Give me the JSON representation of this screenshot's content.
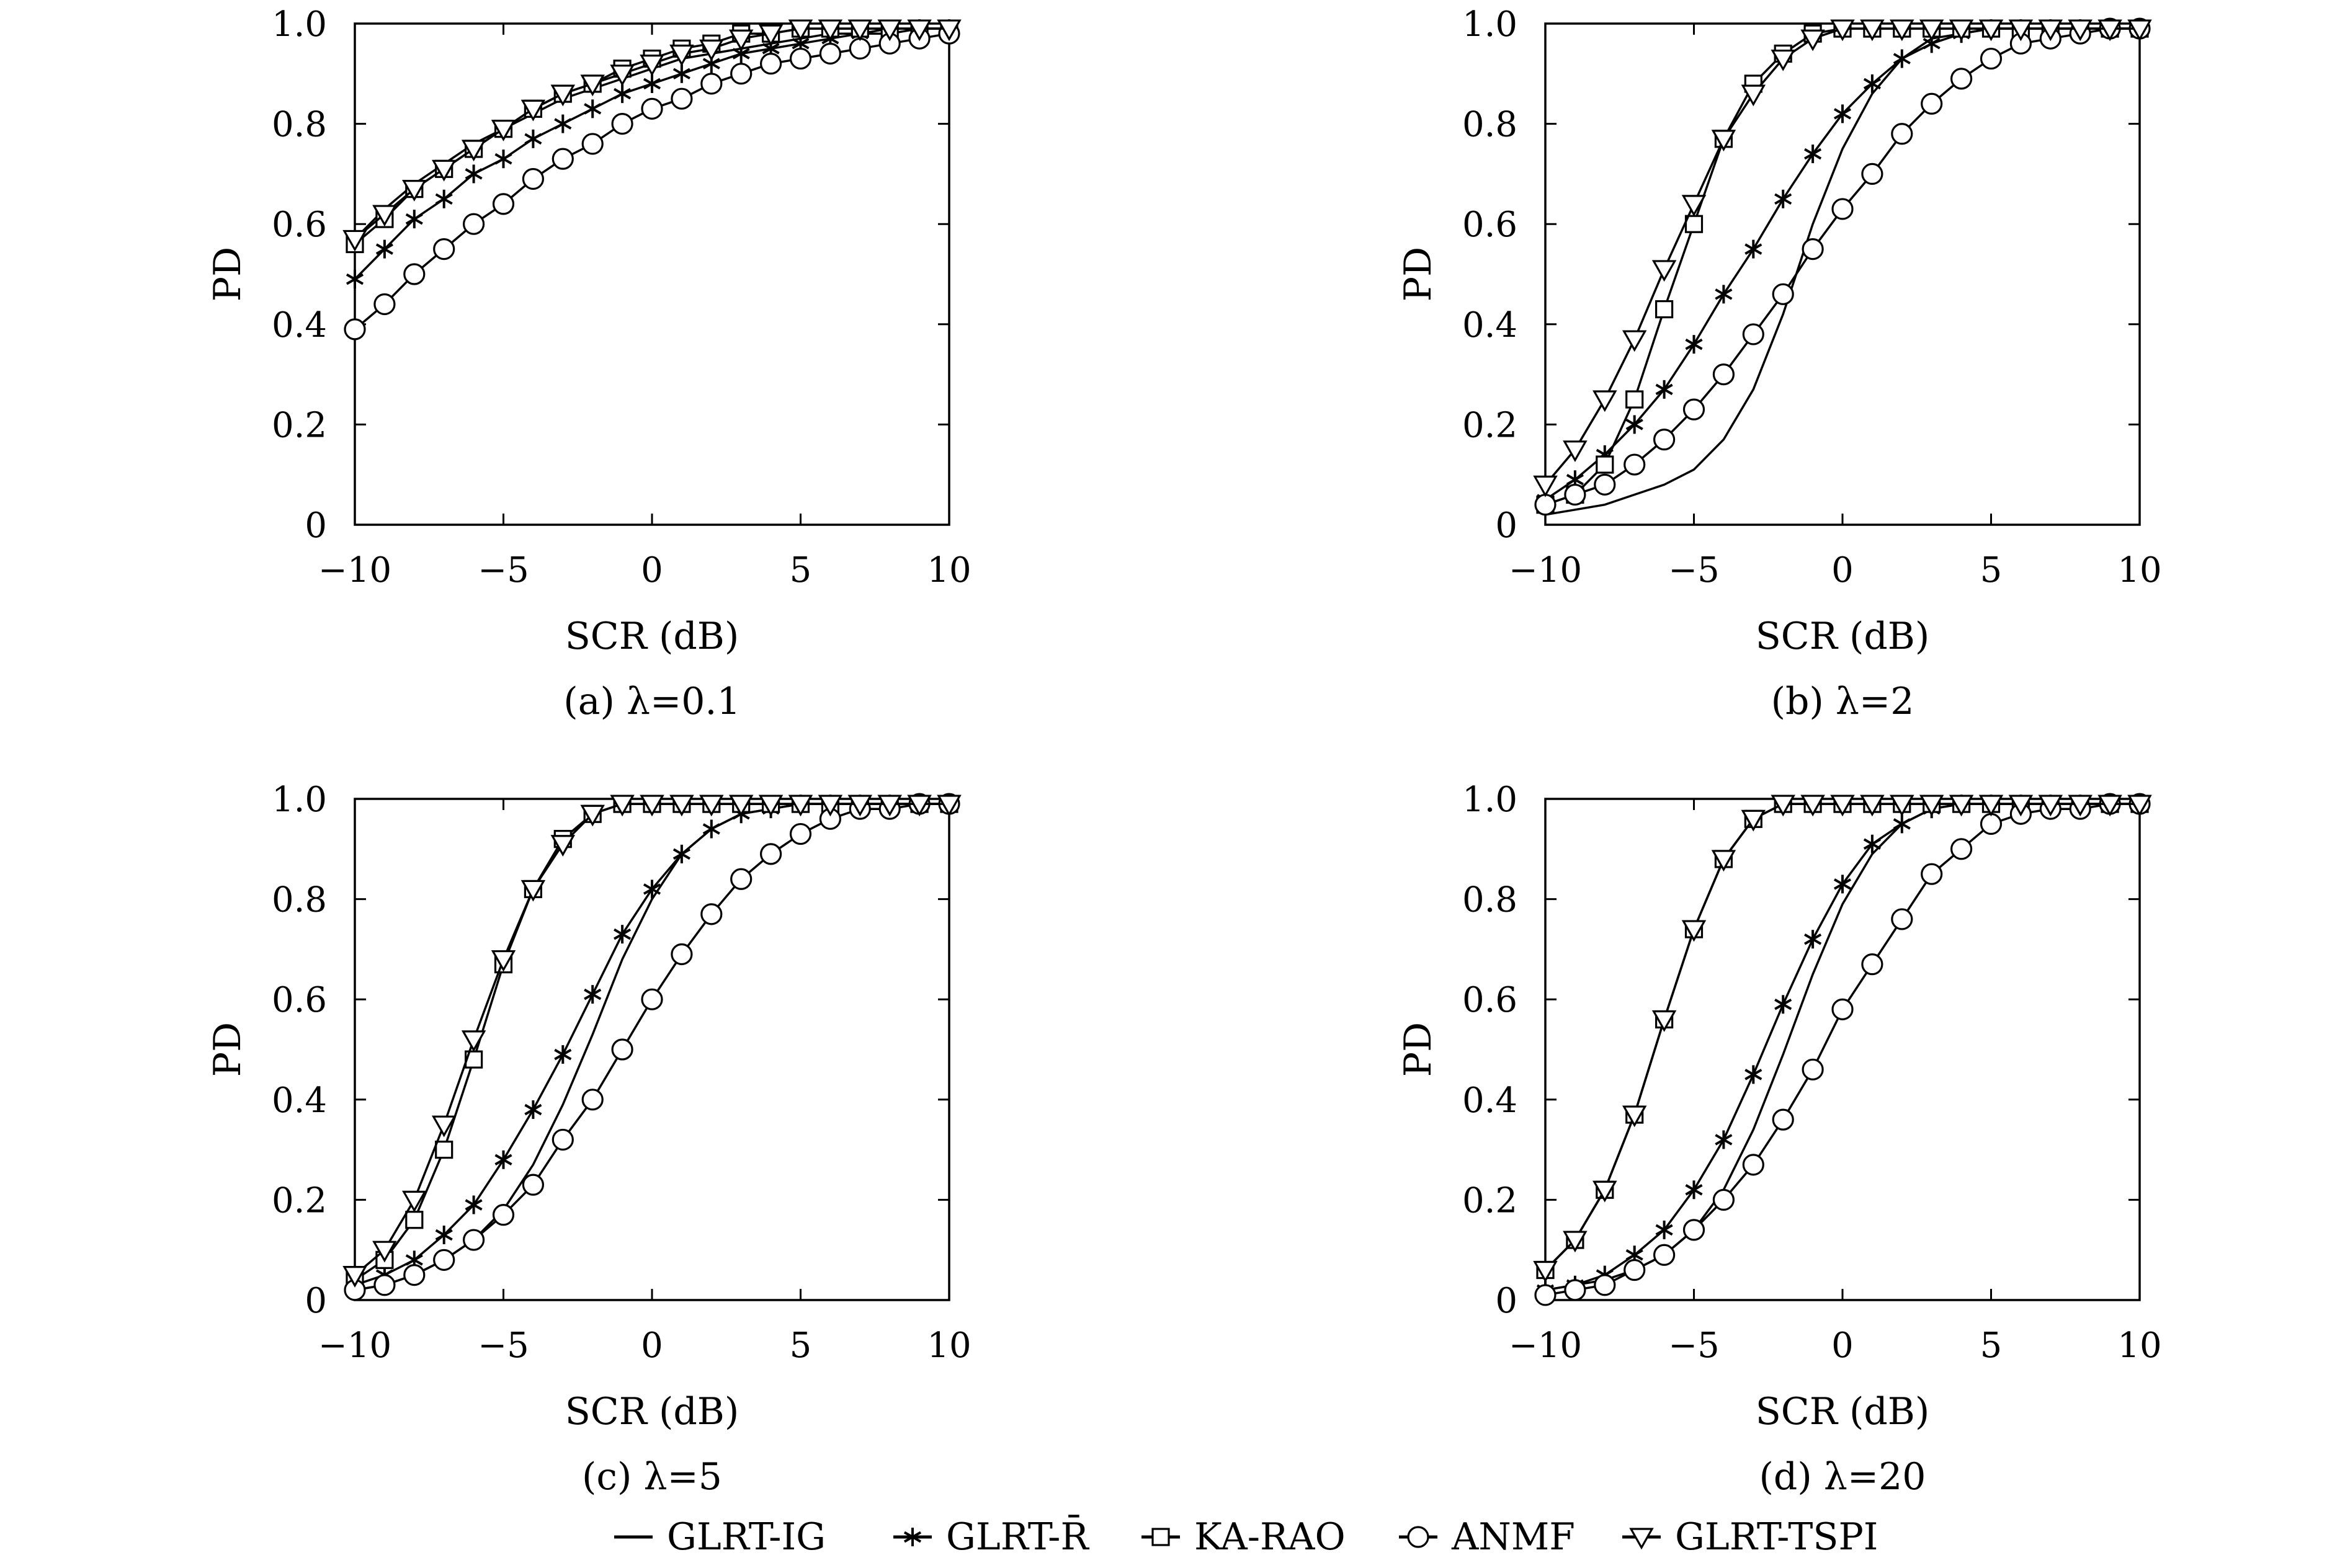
{
  "chart_data": [
    {
      "type": "line",
      "caption": "(a) λ=0.1",
      "xlabel": "SCR (dB)",
      "ylabel": "PD",
      "xlim": [
        -10,
        10
      ],
      "ylim": [
        0,
        1
      ],
      "xticks": [
        "−10",
        "−5",
        "0",
        "5",
        "10"
      ],
      "yticks": [
        "0",
        "0.2",
        "0.4",
        "0.6",
        "0.8",
        "1.0"
      ],
      "x": [
        -10,
        -9,
        -8,
        -7,
        -6,
        -5,
        -4,
        -3,
        -2,
        -1,
        0,
        1,
        2,
        3,
        4,
        5,
        6,
        7,
        8,
        9,
        10
      ],
      "series": [
        {
          "name": "GLRT-IG",
          "marker": "none",
          "values": [
            0.57,
            0.63,
            0.68,
            0.72,
            0.76,
            0.79,
            0.82,
            0.85,
            0.87,
            0.89,
            0.91,
            0.93,
            0.94,
            0.95,
            0.96,
            0.97,
            0.98,
            0.98,
            0.99,
            0.99,
            0.99
          ]
        },
        {
          "name": "GLRT-R̄",
          "marker": "asterisk",
          "values": [
            0.49,
            0.55,
            0.61,
            0.65,
            0.7,
            0.73,
            0.77,
            0.8,
            0.83,
            0.86,
            0.88,
            0.9,
            0.92,
            0.94,
            0.95,
            0.96,
            0.97,
            0.98,
            0.98,
            0.99,
            0.99
          ]
        },
        {
          "name": "KA-RAO",
          "marker": "square",
          "values": [
            0.56,
            0.61,
            0.67,
            0.71,
            0.75,
            0.79,
            0.83,
            0.86,
            0.88,
            0.91,
            0.93,
            0.95,
            0.96,
            0.98,
            0.98,
            0.99,
            0.99,
            0.99,
            0.99,
            0.99,
            0.99
          ]
        },
        {
          "name": "ANMF",
          "marker": "circle",
          "values": [
            0.39,
            0.44,
            0.5,
            0.55,
            0.6,
            0.64,
            0.69,
            0.73,
            0.76,
            0.8,
            0.83,
            0.85,
            0.88,
            0.9,
            0.92,
            0.93,
            0.94,
            0.95,
            0.96,
            0.97,
            0.98
          ]
        },
        {
          "name": "GLRT-TSPI",
          "marker": "triangle",
          "values": [
            0.57,
            0.62,
            0.67,
            0.71,
            0.75,
            0.79,
            0.83,
            0.86,
            0.88,
            0.9,
            0.92,
            0.94,
            0.95,
            0.97,
            0.98,
            0.99,
            0.99,
            0.99,
            0.99,
            0.99,
            0.99
          ]
        }
      ]
    },
    {
      "type": "line",
      "caption": "(b) λ=2",
      "xlabel": "SCR (dB)",
      "ylabel": "PD",
      "xlim": [
        -10,
        10
      ],
      "ylim": [
        0,
        1
      ],
      "xticks": [
        "−10",
        "−5",
        "0",
        "5",
        "10"
      ],
      "yticks": [
        "0",
        "0.2",
        "0.4",
        "0.6",
        "0.8",
        "1.0"
      ],
      "x": [
        -10,
        -9,
        -8,
        -7,
        -6,
        -5,
        -4,
        -3,
        -2,
        -1,
        0,
        1,
        2,
        3,
        4,
        5,
        6,
        7,
        8,
        9,
        10
      ],
      "series": [
        {
          "name": "GLRT-IG",
          "marker": "none",
          "values": [
            0.02,
            0.03,
            0.04,
            0.06,
            0.08,
            0.11,
            0.17,
            0.27,
            0.42,
            0.6,
            0.75,
            0.86,
            0.93,
            0.97,
            0.98,
            0.99,
            0.99,
            0.99,
            0.99,
            0.99,
            0.99
          ]
        },
        {
          "name": "GLRT-R̄",
          "marker": "asterisk",
          "values": [
            0.05,
            0.09,
            0.14,
            0.2,
            0.27,
            0.36,
            0.46,
            0.55,
            0.65,
            0.74,
            0.82,
            0.88,
            0.93,
            0.96,
            0.98,
            0.99,
            0.99,
            0.99,
            0.99,
            0.99,
            0.99
          ]
        },
        {
          "name": "KA-RAO",
          "marker": "square",
          "values": [
            0.04,
            0.06,
            0.12,
            0.25,
            0.43,
            0.6,
            0.77,
            0.88,
            0.94,
            0.98,
            0.99,
            0.99,
            0.99,
            0.99,
            0.99,
            0.99,
            0.99,
            0.99,
            0.99,
            0.99,
            0.99
          ]
        },
        {
          "name": "ANMF",
          "marker": "circle",
          "values": [
            0.04,
            0.06,
            0.08,
            0.12,
            0.17,
            0.23,
            0.3,
            0.38,
            0.46,
            0.55,
            0.63,
            0.7,
            0.78,
            0.84,
            0.89,
            0.93,
            0.96,
            0.97,
            0.98,
            0.99,
            0.99
          ]
        },
        {
          "name": "GLRT-TSPI",
          "marker": "triangle",
          "values": [
            0.08,
            0.15,
            0.25,
            0.37,
            0.51,
            0.64,
            0.77,
            0.86,
            0.93,
            0.97,
            0.99,
            0.99,
            0.99,
            0.99,
            0.99,
            0.99,
            0.99,
            0.99,
            0.99,
            0.99,
            0.99
          ]
        }
      ]
    },
    {
      "type": "line",
      "caption": "(c) λ=5",
      "xlabel": "SCR (dB)",
      "ylabel": "PD",
      "xlim": [
        -10,
        10
      ],
      "ylim": [
        0,
        1
      ],
      "xticks": [
        "−10",
        "−5",
        "0",
        "5",
        "10"
      ],
      "yticks": [
        "0",
        "0.2",
        "0.4",
        "0.6",
        "0.8",
        "1.0"
      ],
      "x": [
        -10,
        -9,
        -8,
        -7,
        -6,
        -5,
        -4,
        -3,
        -2,
        -1,
        0,
        1,
        2,
        3,
        4,
        5,
        6,
        7,
        8,
        9,
        10
      ],
      "series": [
        {
          "name": "GLRT-IG",
          "marker": "none",
          "values": [
            0.02,
            0.03,
            0.05,
            0.08,
            0.12,
            0.18,
            0.27,
            0.39,
            0.53,
            0.68,
            0.8,
            0.89,
            0.94,
            0.97,
            0.98,
            0.99,
            0.99,
            0.99,
            0.99,
            0.99,
            0.99
          ]
        },
        {
          "name": "GLRT-R̄",
          "marker": "asterisk",
          "values": [
            0.03,
            0.05,
            0.08,
            0.13,
            0.19,
            0.28,
            0.38,
            0.49,
            0.61,
            0.73,
            0.82,
            0.89,
            0.94,
            0.97,
            0.98,
            0.99,
            0.99,
            0.99,
            0.99,
            0.99,
            0.99
          ]
        },
        {
          "name": "KA-RAO",
          "marker": "square",
          "values": [
            0.04,
            0.08,
            0.16,
            0.3,
            0.48,
            0.67,
            0.82,
            0.92,
            0.97,
            0.99,
            0.99,
            0.99,
            0.99,
            0.99,
            0.99,
            0.99,
            0.99,
            0.99,
            0.99,
            0.99,
            0.99
          ]
        },
        {
          "name": "ANMF",
          "marker": "circle",
          "values": [
            0.02,
            0.03,
            0.05,
            0.08,
            0.12,
            0.17,
            0.23,
            0.32,
            0.4,
            0.5,
            0.6,
            0.69,
            0.77,
            0.84,
            0.89,
            0.93,
            0.96,
            0.98,
            0.98,
            0.99,
            0.99
          ]
        },
        {
          "name": "GLRT-TSPI",
          "marker": "triangle",
          "values": [
            0.05,
            0.1,
            0.2,
            0.35,
            0.52,
            0.68,
            0.82,
            0.91,
            0.97,
            0.99,
            0.99,
            0.99,
            0.99,
            0.99,
            0.99,
            0.99,
            0.99,
            0.99,
            0.99,
            0.99,
            0.99
          ]
        }
      ]
    },
    {
      "type": "line",
      "caption": "(d) λ=20",
      "xlabel": "SCR (dB)",
      "ylabel": "PD",
      "xlim": [
        -10,
        10
      ],
      "ylim": [
        0,
        1
      ],
      "xticks": [
        "−10",
        "−5",
        "0",
        "5",
        "10"
      ],
      "yticks": [
        "0",
        "0.2",
        "0.4",
        "0.6",
        "0.8",
        "1.0"
      ],
      "x": [
        -10,
        -9,
        -8,
        -7,
        -6,
        -5,
        -4,
        -3,
        -2,
        -1,
        0,
        1,
        2,
        3,
        4,
        5,
        6,
        7,
        8,
        9,
        10
      ],
      "series": [
        {
          "name": "GLRT-IG",
          "marker": "none",
          "values": [
            0.02,
            0.03,
            0.04,
            0.06,
            0.09,
            0.14,
            0.22,
            0.34,
            0.49,
            0.65,
            0.79,
            0.89,
            0.95,
            0.98,
            0.99,
            0.99,
            0.99,
            0.99,
            0.99,
            0.99,
            0.99
          ]
        },
        {
          "name": "GLRT-R̄",
          "marker": "asterisk",
          "values": [
            0.02,
            0.03,
            0.05,
            0.09,
            0.14,
            0.22,
            0.32,
            0.45,
            0.59,
            0.72,
            0.83,
            0.91,
            0.95,
            0.98,
            0.99,
            0.99,
            0.99,
            0.99,
            0.99,
            0.99,
            0.99
          ]
        },
        {
          "name": "KA-RAO",
          "marker": "square",
          "values": [
            0.06,
            0.12,
            0.22,
            0.37,
            0.56,
            0.74,
            0.88,
            0.96,
            0.99,
            0.99,
            0.99,
            0.99,
            0.99,
            0.99,
            0.99,
            0.99,
            0.99,
            0.99,
            0.99,
            0.99,
            0.99
          ]
        },
        {
          "name": "ANMF",
          "marker": "circle",
          "values": [
            0.01,
            0.02,
            0.03,
            0.06,
            0.09,
            0.14,
            0.2,
            0.27,
            0.36,
            0.46,
            0.58,
            0.67,
            0.76,
            0.85,
            0.9,
            0.95,
            0.97,
            0.98,
            0.98,
            0.99,
            0.99
          ]
        },
        {
          "name": "GLRT-TSPI",
          "marker": "triangle",
          "values": [
            0.06,
            0.12,
            0.22,
            0.37,
            0.56,
            0.74,
            0.88,
            0.96,
            0.99,
            0.99,
            0.99,
            0.99,
            0.99,
            0.99,
            0.99,
            0.99,
            0.99,
            0.99,
            0.99,
            0.99,
            0.99
          ]
        }
      ]
    }
  ],
  "legend": {
    "items": [
      {
        "label": "GLRT-IG",
        "marker": "none"
      },
      {
        "label": "GLRT-R̄",
        "marker": "asterisk"
      },
      {
        "label": "KA-RAO",
        "marker": "square"
      },
      {
        "label": "ANMF",
        "marker": "circle"
      },
      {
        "label": "GLRT-TSPI",
        "marker": "triangle"
      }
    ]
  },
  "colors": {
    "line": "#000000",
    "background": "#ffffff"
  }
}
